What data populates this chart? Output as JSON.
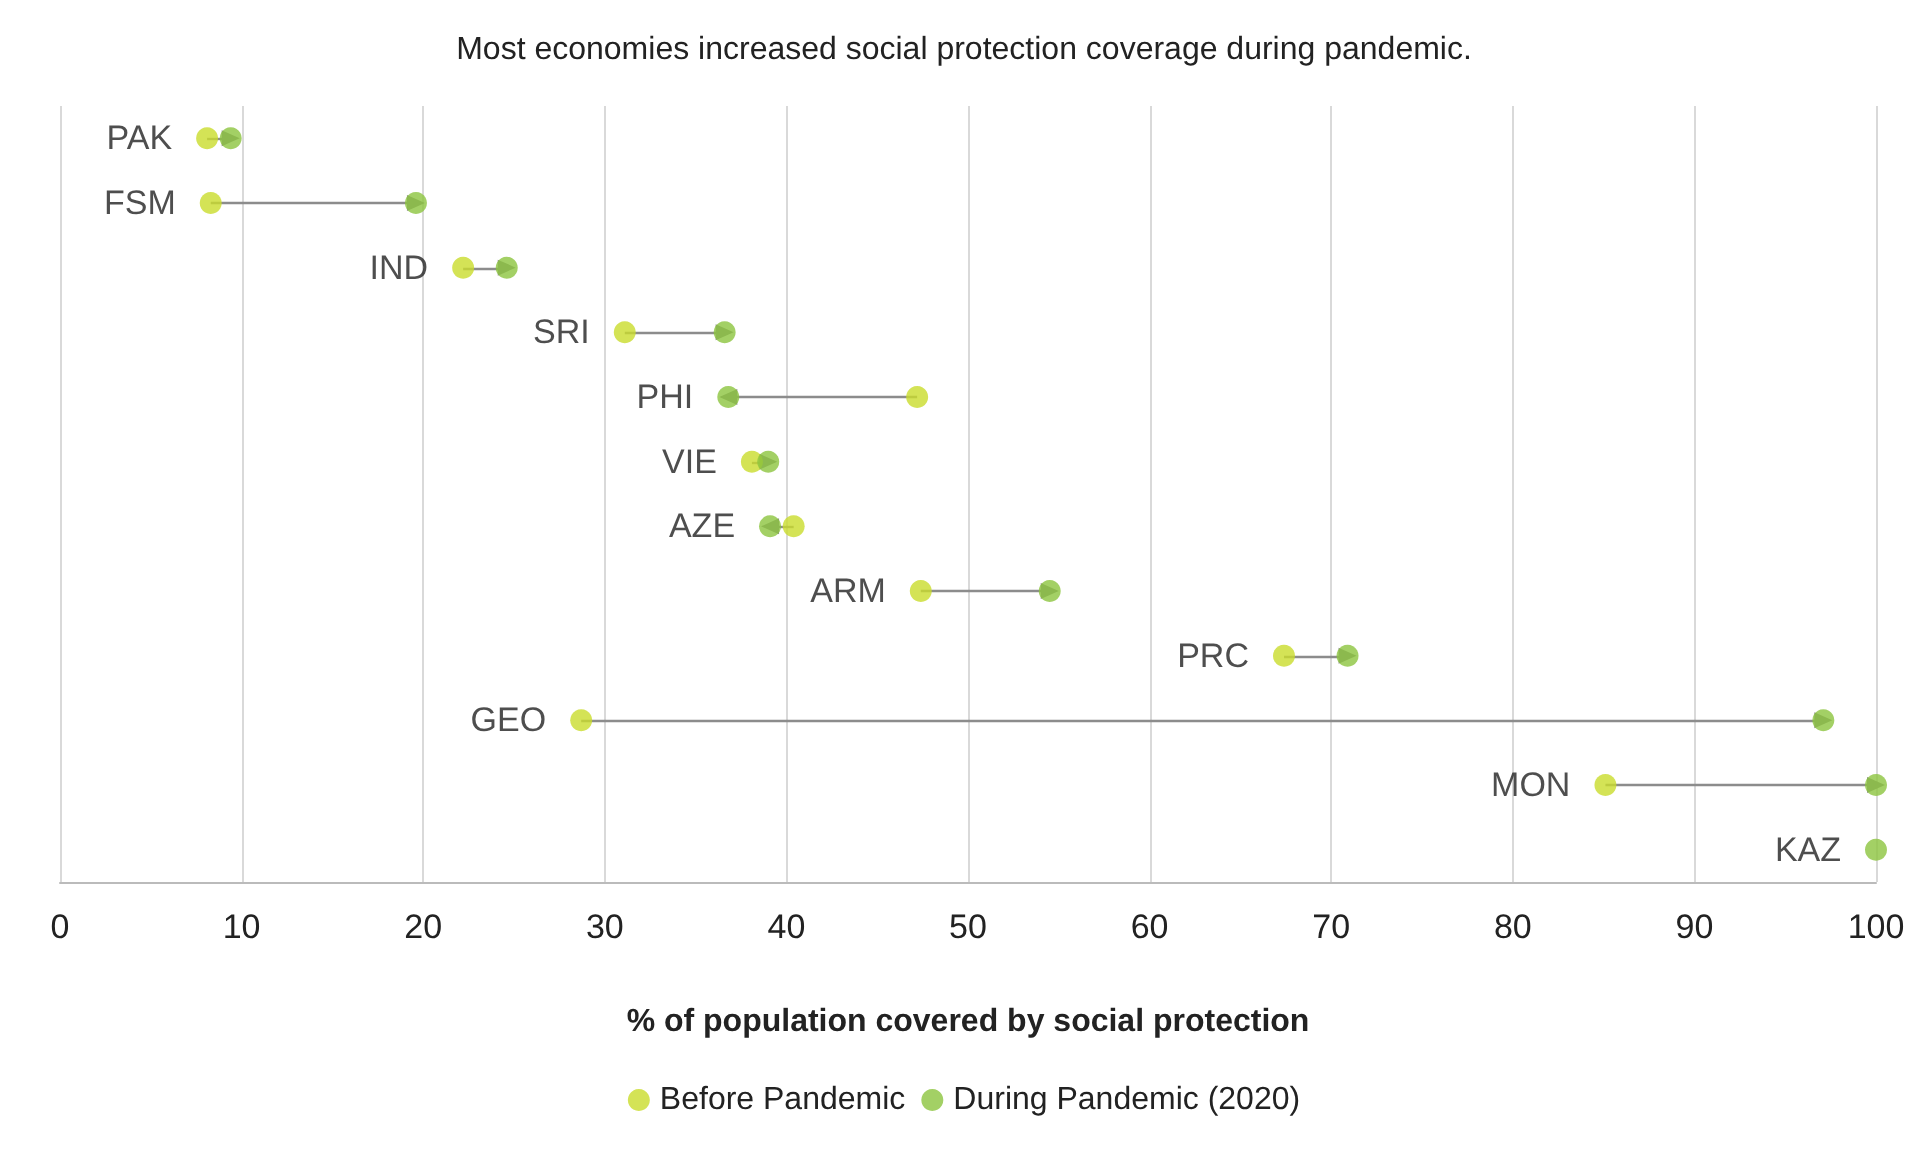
{
  "chart_data": {
    "type": "scatter",
    "title": "Most economies increased social protection coverage during pandemic.",
    "xlabel": "% of population covered by social protection",
    "orientation": "horizontal",
    "categories": [
      "PAK",
      "FSM",
      "IND",
      "SRI",
      "PHI",
      "VIE",
      "AZE",
      "ARM",
      "PRC",
      "GEO",
      "MON",
      "KAZ"
    ],
    "series": [
      {
        "name": "Before Pandemic",
        "color": "#c9dc2c",
        "values": [
          8.1,
          8.3,
          22.2,
          31.1,
          47.2,
          38.1,
          40.4,
          47.4,
          67.4,
          28.7,
          85.1,
          null
        ]
      },
      {
        "name": "During Pandemic (2020)",
        "color": "#8cc43f",
        "values": [
          9.4,
          19.6,
          24.6,
          36.6,
          36.8,
          39.0,
          39.1,
          54.5,
          70.9,
          97.1,
          100,
          100
        ]
      }
    ],
    "xlim": [
      0,
      100
    ],
    "xticks": [
      0,
      10,
      20,
      30,
      40,
      50,
      60,
      70,
      80,
      90,
      100
    ],
    "grid": "x",
    "legend": "bottom",
    "marker": "circle",
    "tick_labels": "x"
  }
}
